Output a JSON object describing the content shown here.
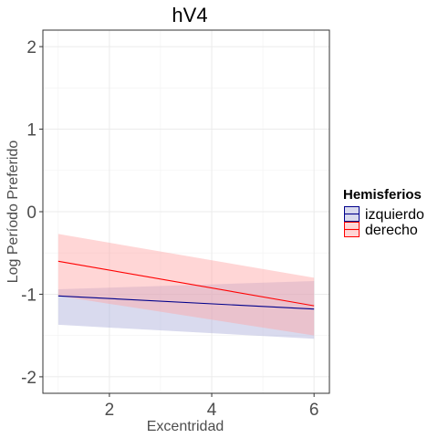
{
  "chart_data": {
    "type": "line",
    "title": "hV4",
    "xlabel": "Excentridad",
    "ylabel": "Log Período Preferido",
    "xlim": [
      0.7,
      6.3
    ],
    "ylim": [
      -2.2,
      2.2
    ],
    "x_ticks": [
      "2",
      "4",
      "6"
    ],
    "y_ticks": [
      "-2",
      "-1",
      "0",
      "1",
      "2"
    ],
    "grid": true,
    "legend": {
      "title": "Hemisferios",
      "placement": "right"
    },
    "series": [
      {
        "name": "izquierdo",
        "color": "#00008B",
        "fill": "#AAAEDA",
        "x": [
          1,
          6
        ],
        "y": [
          -1.02,
          -1.18
        ],
        "lower": [
          -1.37,
          -1.54
        ],
        "upper": [
          -0.94,
          -0.84
        ]
      },
      {
        "name": "derecho",
        "color": "#FF0000",
        "fill": "#FFA3A3",
        "x": [
          1,
          6
        ],
        "y": [
          -0.6,
          -1.14
        ],
        "lower": [
          -1.02,
          -1.5
        ],
        "upper": [
          -0.27,
          -0.8
        ]
      }
    ]
  }
}
